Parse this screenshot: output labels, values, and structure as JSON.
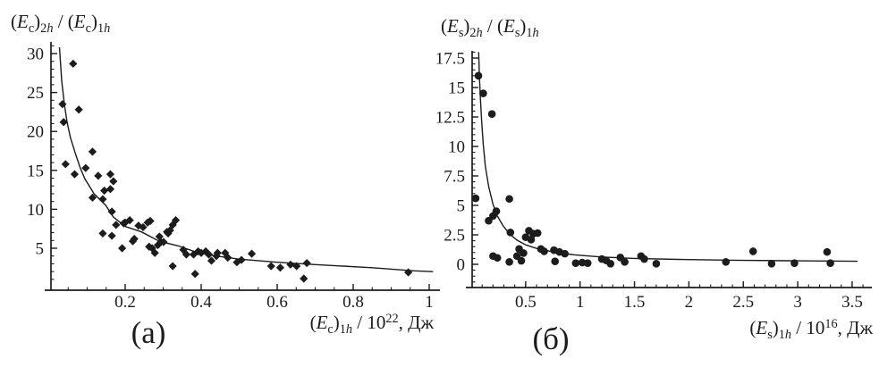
{
  "colors": {
    "ink": "#1c1c1c",
    "background": "#ffffff"
  },
  "chart_data": [
    {
      "id": "a",
      "type": "scatter",
      "caption": "(а)",
      "marker": "diamond",
      "ylabel": "(Ec)2h / (Ec)1h",
      "xlabel": "(Ec)1h / 10^22, Дж",
      "ylabel_tokens": [
        [
          "(",
          "n"
        ],
        [
          "E",
          "i"
        ],
        [
          "c",
          "sub"
        ],
        [
          ")",
          "n"
        ],
        [
          "2",
          "sub"
        ],
        [
          "h",
          "subi"
        ],
        [
          " / ",
          "n"
        ],
        [
          "(",
          "n"
        ],
        [
          "E",
          "i"
        ],
        [
          "c",
          "sub"
        ],
        [
          ")",
          "n"
        ],
        [
          "1",
          "sub"
        ],
        [
          "h",
          "subi"
        ]
      ],
      "xlabel_tokens": [
        [
          "(",
          "n"
        ],
        [
          "E",
          "i"
        ],
        [
          "c",
          "sub"
        ],
        [
          ")",
          "n"
        ],
        [
          "1",
          "sub"
        ],
        [
          "h",
          "subi"
        ],
        [
          " / 10",
          "n"
        ],
        [
          "22",
          "sup"
        ],
        [
          ", Дж",
          "n"
        ]
      ],
      "xlim": [
        0,
        1.03
      ],
      "ylim": [
        -0.4,
        31.5
      ],
      "x_axis": {
        "major": [
          0.2,
          0.4,
          0.6,
          0.8,
          1.0
        ],
        "major_labels": [
          "0.2",
          "0.4",
          "0.6",
          "0.8",
          "1"
        ],
        "minor": {
          "start": 0.05,
          "end": 1.0,
          "step": 0.05
        }
      },
      "y_axis": {
        "major": [
          5,
          10,
          15,
          20,
          25,
          30
        ],
        "major_labels": [
          "5",
          "10",
          "15",
          "20",
          "25",
          "30"
        ],
        "minor": {
          "start": 1,
          "end": 31,
          "step": 1
        }
      },
      "points": [
        [
          0.063,
          28.7
        ],
        [
          0.035,
          23.5
        ],
        [
          0.078,
          22.8
        ],
        [
          0.038,
          21.2
        ],
        [
          0.114,
          17.4
        ],
        [
          0.043,
          15.8
        ],
        [
          0.067,
          14.5
        ],
        [
          0.096,
          15.3
        ],
        [
          0.129,
          14.3
        ],
        [
          0.161,
          14.5
        ],
        [
          0.169,
          13.6
        ],
        [
          0.145,
          12.4
        ],
        [
          0.161,
          12.6
        ],
        [
          0.114,
          11.5
        ],
        [
          0.141,
          11.3
        ],
        [
          0.165,
          9.7
        ],
        [
          0.176,
          8.0
        ],
        [
          0.196,
          8.2
        ],
        [
          0.141,
          6.9
        ],
        [
          0.165,
          6.6
        ],
        [
          0.192,
          5.0
        ],
        [
          0.2,
          8.3
        ],
        [
          0.212,
          8.6
        ],
        [
          0.22,
          5.9
        ],
        [
          0.224,
          6.2
        ],
        [
          0.235,
          7.9
        ],
        [
          0.247,
          7.7
        ],
        [
          0.259,
          8.3
        ],
        [
          0.266,
          8.5
        ],
        [
          0.263,
          5.2
        ],
        [
          0.271,
          5.0
        ],
        [
          0.278,
          4.4
        ],
        [
          0.286,
          5.4
        ],
        [
          0.294,
          5.8
        ],
        [
          0.301,
          5.8
        ],
        [
          0.313,
          6.9
        ],
        [
          0.318,
          7.3
        ],
        [
          0.29,
          6.5
        ],
        [
          0.31,
          7.1
        ],
        [
          0.325,
          8.0
        ],
        [
          0.333,
          8.6
        ],
        [
          0.325,
          2.7
        ],
        [
          0.353,
          4.8
        ],
        [
          0.361,
          4.2
        ],
        [
          0.38,
          4.2
        ],
        [
          0.384,
          1.7
        ],
        [
          0.392,
          4.6
        ],
        [
          0.4,
          4.4
        ],
        [
          0.412,
          4.6
        ],
        [
          0.42,
          4.2
        ],
        [
          0.427,
          3.4
        ],
        [
          0.44,
          4.0
        ],
        [
          0.443,
          4.4
        ],
        [
          0.463,
          4.4
        ],
        [
          0.47,
          3.8
        ],
        [
          0.494,
          3.2
        ],
        [
          0.506,
          3.5
        ],
        [
          0.533,
          4.3
        ],
        [
          0.584,
          2.7
        ],
        [
          0.608,
          2.5
        ],
        [
          0.635,
          2.9
        ],
        [
          0.651,
          2.7
        ],
        [
          0.678,
          3.1
        ],
        [
          0.67,
          1.1
        ],
        [
          0.945,
          1.9
        ]
      ],
      "fit_curve": [
        [
          0.027,
          30.8
        ],
        [
          0.033,
          26.5
        ],
        [
          0.04,
          23.5
        ],
        [
          0.047,
          21.2
        ],
        [
          0.056,
          19.2
        ],
        [
          0.07,
          17.0
        ],
        [
          0.082,
          15.3
        ],
        [
          0.094,
          13.9
        ],
        [
          0.118,
          12.0
        ],
        [
          0.149,
          10.5
        ],
        [
          0.169,
          9.0
        ],
        [
          0.2,
          7.8
        ],
        [
          0.243,
          7.1
        ],
        [
          0.29,
          5.9
        ],
        [
          0.34,
          5.3
        ],
        [
          0.392,
          4.4
        ],
        [
          0.44,
          4.0
        ],
        [
          0.5,
          3.6
        ],
        [
          0.6,
          3.2
        ],
        [
          0.7,
          2.9
        ],
        [
          0.85,
          2.5
        ],
        [
          0.96,
          2.1
        ],
        [
          1.01,
          2.0
        ]
      ]
    },
    {
      "id": "b",
      "type": "scatter",
      "caption": "(б)",
      "marker": "circle",
      "ylabel": "(Es)2h / (Es)1h",
      "xlabel": "(Es)1h / 10^16, Дж",
      "ylabel_tokens": [
        [
          "(",
          "n"
        ],
        [
          "E",
          "i"
        ],
        [
          "s",
          "sub"
        ],
        [
          ")",
          "n"
        ],
        [
          "2",
          "sub"
        ],
        [
          "h",
          "subi"
        ],
        [
          " / ",
          "n"
        ],
        [
          "(",
          "n"
        ],
        [
          "E",
          "i"
        ],
        [
          "s",
          "sub"
        ],
        [
          ")",
          "n"
        ],
        [
          "1",
          "sub"
        ],
        [
          "h",
          "subi"
        ]
      ],
      "xlabel_tokens": [
        [
          "(",
          "n"
        ],
        [
          "E",
          "i"
        ],
        [
          "s",
          "sub"
        ],
        [
          ")",
          "n"
        ],
        [
          "1",
          "sub"
        ],
        [
          "h",
          "subi"
        ],
        [
          " / 10",
          "n"
        ],
        [
          "16",
          "sup"
        ],
        [
          ", Дж",
          "n"
        ]
      ],
      "xlim": [
        0,
        3.68
      ],
      "ylim": [
        -2.0,
        18.1
      ],
      "x_axis": {
        "major": [
          0.5,
          1.0,
          1.5,
          2.0,
          2.5,
          3.0,
          3.5
        ],
        "major_labels": [
          "0.5",
          "1",
          "1.5",
          "2",
          "2.5",
          "3",
          "3.5"
        ],
        "minor": {
          "start": 0.1,
          "end": 3.6,
          "step": 0.1
        }
      },
      "y_axis": {
        "major": [
          0,
          2.5,
          5,
          7.5,
          10,
          12.5,
          15,
          17.5
        ],
        "major_labels": [
          "0",
          "2.5",
          "5",
          "7.5",
          "10",
          "12.5",
          "15",
          "17.5"
        ],
        "minor": {
          "start": -1.5,
          "end": 18,
          "step": 0.5
        }
      },
      "points": [
        [
          0.066,
          16.0
        ],
        [
          0.11,
          14.5
        ],
        [
          0.19,
          12.75
        ],
        [
          0.04,
          5.6
        ],
        [
          0.35,
          5.55
        ],
        [
          0.23,
          4.5
        ],
        [
          0.16,
          3.7
        ],
        [
          0.2,
          4.1
        ],
        [
          0.36,
          2.7
        ],
        [
          0.53,
          2.85
        ],
        [
          0.57,
          2.6
        ],
        [
          0.61,
          2.65
        ],
        [
          0.5,
          2.3
        ],
        [
          0.55,
          2.1
        ],
        [
          0.64,
          1.3
        ],
        [
          0.67,
          1.1
        ],
        [
          0.44,
          1.3
        ],
        [
          0.48,
          0.95
        ],
        [
          0.42,
          0.7
        ],
        [
          0.46,
          0.3
        ],
        [
          0.2,
          0.7
        ],
        [
          0.24,
          0.55
        ],
        [
          0.35,
          0.2
        ],
        [
          0.76,
          1.2
        ],
        [
          0.81,
          1.05
        ],
        [
          0.86,
          0.9
        ],
        [
          0.77,
          0.25
        ],
        [
          0.96,
          0.1
        ],
        [
          1.02,
          0.15
        ],
        [
          1.07,
          0.1
        ],
        [
          1.2,
          0.45
        ],
        [
          1.24,
          0.33
        ],
        [
          1.28,
          0.05
        ],
        [
          1.37,
          0.58
        ],
        [
          1.41,
          0.2
        ],
        [
          1.56,
          0.7
        ],
        [
          1.59,
          0.45
        ],
        [
          1.7,
          0.05
        ],
        [
          2.34,
          0.2
        ],
        [
          2.59,
          1.1
        ],
        [
          2.76,
          0.05
        ],
        [
          2.97,
          0.1
        ],
        [
          3.27,
          1.05
        ],
        [
          3.3,
          0.1
        ]
      ],
      "fit_curve": [
        [
          0.068,
          18.0
        ],
        [
          0.075,
          16.0
        ],
        [
          0.085,
          14.0
        ],
        [
          0.095,
          12.2
        ],
        [
          0.11,
          10.2
        ],
        [
          0.13,
          8.3
        ],
        [
          0.16,
          6.6
        ],
        [
          0.2,
          5.1
        ],
        [
          0.24,
          4.1
        ],
        [
          0.29,
          3.3
        ],
        [
          0.35,
          2.6
        ],
        [
          0.42,
          2.05
        ],
        [
          0.5,
          1.65
        ],
        [
          0.6,
          1.35
        ],
        [
          0.75,
          1.05
        ],
        [
          0.95,
          0.8
        ],
        [
          1.2,
          0.62
        ],
        [
          1.5,
          0.5
        ],
        [
          1.9,
          0.42
        ],
        [
          2.4,
          0.35
        ],
        [
          2.9,
          0.3
        ],
        [
          3.4,
          0.27
        ],
        [
          3.55,
          0.26
        ]
      ]
    }
  ]
}
